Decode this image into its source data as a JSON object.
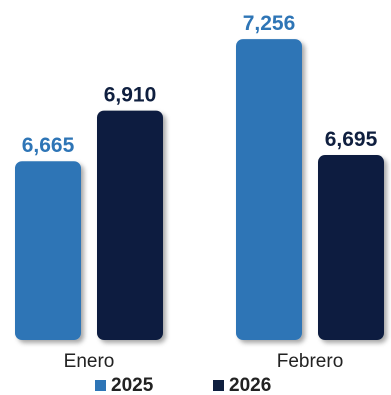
{
  "chart_data": {
    "type": "bar",
    "categories": [
      "Enero",
      "Febrero"
    ],
    "series": [
      {
        "name": "2025",
        "values": [
          6665,
          7256
        ],
        "labels": [
          "6,665",
          "7,256"
        ],
        "color": "#2E75B6"
      },
      {
        "name": "2026",
        "values": [
          6910,
          6695
        ],
        "labels": [
          "6,910",
          "6,695"
        ],
        "color": "#0F1F3F"
      }
    ],
    "title": "",
    "xlabel": "",
    "ylabel": "",
    "ylim": [
      5800,
      7300
    ],
    "grid": false,
    "legend": "bottom"
  }
}
